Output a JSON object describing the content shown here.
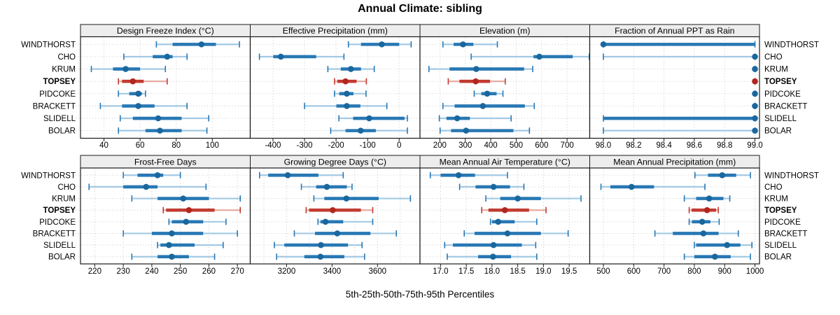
{
  "title": "Annual Climate: sibling",
  "xlabel": "5th-25th-50th-75th-95th Percentiles",
  "sites": [
    "WINDTHORST",
    "CHO",
    "KRUM",
    "TOPSEY",
    "PIDCOKE",
    "BRACKETT",
    "SLIDELL",
    "BOLAR"
  ],
  "highlight_site": "TOPSEY",
  "colors": {
    "blue_range": "#a3c9e4",
    "blue_bar": "#2878b4",
    "blue_dot": "#1a679e",
    "red_range": "#e7a69d",
    "red_bar": "#c23b31",
    "red_dot": "#b2261e",
    "strip_bg": "#ededed",
    "panel_border": "#1a1a1a",
    "grid": "#c9c9c9",
    "text": "#000000"
  },
  "chart_data": {
    "type": "dotplot",
    "subtype": "percentile-interval-plot",
    "percentiles": [
      5,
      25,
      50,
      75,
      95
    ],
    "grid": "dotted",
    "rows_top_to_bottom": [
      "WINDTHORST",
      "CHO",
      "KRUM",
      "TOPSEY",
      "PIDCOKE",
      "BRACKETT",
      "SLIDELL",
      "BOLAR"
    ],
    "panels": [
      {
        "title": "Design Freeze Index (°C)",
        "grid_row": 0,
        "grid_col": 0,
        "xlim": [
          27,
          121
        ],
        "ticks": [
          40,
          60,
          80,
          100
        ],
        "tick_labels": [
          "40",
          "60",
          "80",
          "100"
        ],
        "minor_grid": [],
        "values": {
          "WINDTHORST": [
            69,
            78,
            94,
            102,
            115
          ],
          "CHO": [
            51,
            67,
            75,
            78,
            86
          ],
          "KRUM": [
            33,
            45,
            52,
            60,
            74
          ],
          "TOPSEY": [
            48,
            50,
            56,
            62,
            75
          ],
          "PIDCOKE": [
            48,
            54,
            59,
            61,
            63
          ],
          "BRACKETT": [
            38,
            50,
            59,
            68,
            86
          ],
          "SLIDELL": [
            49,
            56,
            70,
            83,
            98
          ],
          "BOLAR": [
            48,
            63,
            71,
            83,
            97
          ]
        }
      },
      {
        "title": "Effective Precipitation (mm)",
        "grid_row": 0,
        "grid_col": 1,
        "xlim": [
          -472,
          66
        ],
        "ticks": [
          -400,
          -300,
          -200,
          -100,
          0
        ],
        "tick_labels": [
          "-400",
          "-300",
          "-200",
          "-100",
          "0"
        ],
        "minor_grid": [],
        "values": {
          "WINDTHORST": [
            -161,
            -121,
            -55,
            0,
            38
          ],
          "CHO": [
            -443,
            -399,
            -375,
            -263,
            -175
          ],
          "KRUM": [
            -226,
            -185,
            -153,
            -121,
            -79
          ],
          "TOPSEY": [
            -205,
            -196,
            -170,
            -135,
            -104
          ],
          "PIDCOKE": [
            -205,
            -190,
            -166,
            -145,
            -105
          ],
          "BRACKETT": [
            -300,
            -199,
            -166,
            -123,
            -39
          ],
          "SLIDELL": [
            -191,
            -146,
            -95,
            17,
            26
          ],
          "BOLAR": [
            -217,
            -170,
            -122,
            -74,
            26
          ]
        }
      },
      {
        "title": "Elevation (m)",
        "grid_row": 0,
        "grid_col": 2,
        "xlim": [
          122,
          789
        ],
        "ticks": [
          200,
          300,
          400,
          500,
          600,
          700
        ],
        "tick_labels": [
          "200",
          "300",
          "400",
          "500",
          "600",
          "700"
        ],
        "minor_grid": [],
        "values": {
          "WINDTHORST": [
            212,
            254,
            291,
            332,
            426
          ],
          "CHO": [
            323,
            568,
            591,
            722,
            787
          ],
          "KRUM": [
            157,
            238,
            343,
            531,
            565
          ],
          "TOPSEY": [
            233,
            277,
            341,
            397,
            457
          ],
          "PIDCOKE": [
            335,
            363,
            386,
            423,
            448
          ],
          "BRACKETT": [
            212,
            258,
            369,
            534,
            571
          ],
          "SLIDELL": [
            198,
            226,
            268,
            318,
            480
          ],
          "BOLAR": [
            201,
            244,
            303,
            489,
            552
          ]
        }
      },
      {
        "title": "Fraction of Annual PPT as Rain",
        "grid_row": 0,
        "grid_col": 3,
        "xlim": [
          97.91,
          99.03
        ],
        "ticks": [
          98.0,
          98.2,
          98.4,
          98.6,
          98.8,
          99.0
        ],
        "tick_labels": [
          "98.0",
          "98.2",
          "98.4",
          "98.6",
          "98.8",
          "99.0"
        ],
        "minor_grid": [],
        "values": {
          "WINDTHORST": [
            98.0,
            98.0,
            98.0,
            99.0,
            99.0
          ],
          "CHO": [
            98.0,
            99.0,
            99.0,
            99.0,
            99.0
          ],
          "KRUM": [
            99.0,
            99.0,
            99.0,
            99.0,
            99.0
          ],
          "TOPSEY": [
            99.0,
            99.0,
            99.0,
            99.0,
            99.0
          ],
          "PIDCOKE": [
            99.0,
            99.0,
            99.0,
            99.0,
            99.0
          ],
          "BRACKETT": [
            99.0,
            99.0,
            99.0,
            99.0,
            99.0
          ],
          "SLIDELL": [
            98.0,
            98.0,
            99.0,
            99.0,
            99.0
          ],
          "BOLAR": [
            98.0,
            99.0,
            99.0,
            99.0,
            99.0
          ]
        }
      },
      {
        "title": "Frost-Free Days",
        "grid_row": 1,
        "grid_col": 0,
        "xlim": [
          215,
          274.5
        ],
        "ticks": [
          220,
          230,
          240,
          250,
          260,
          270
        ],
        "tick_labels": [
          "220",
          "230",
          "240",
          "250",
          "260",
          "270"
        ],
        "minor_grid": [],
        "values": {
          "WINDTHORST": [
            230,
            235,
            242,
            244,
            250
          ],
          "CHO": [
            218,
            230,
            238,
            242,
            259
          ],
          "KRUM": [
            233,
            242,
            251,
            260,
            271
          ],
          "TOPSEY": [
            244,
            245,
            253,
            262,
            271
          ],
          "PIDCOKE": [
            246,
            247,
            252,
            258,
            266
          ],
          "BRACKETT": [
            230,
            240,
            247,
            258,
            270
          ],
          "SLIDELL": [
            242,
            243,
            246,
            255,
            265
          ],
          "BOLAR": [
            233,
            242,
            247,
            253,
            262
          ]
        }
      },
      {
        "title": "Growing Degree Days (°C)",
        "grid_row": 1,
        "grid_col": 1,
        "xlim": [
          3040,
          3787
        ],
        "ticks": [
          3200,
          3400,
          3600
        ],
        "tick_labels": [
          "3200",
          "3400",
          "3600"
        ],
        "minor_grid": [
          3100,
          3300,
          3500,
          3700
        ],
        "values": {
          "WINDTHORST": [
            3081,
            3119,
            3205,
            3340,
            3449
          ],
          "CHO": [
            3265,
            3330,
            3377,
            3465,
            3488
          ],
          "KRUM": [
            3320,
            3366,
            3463,
            3605,
            3745
          ],
          "TOPSEY": [
            3286,
            3299,
            3403,
            3527,
            3579
          ],
          "PIDCOKE": [
            3338,
            3349,
            3371,
            3449,
            3579
          ],
          "BRACKETT": [
            3234,
            3325,
            3423,
            3569,
            3683
          ],
          "SLIDELL": [
            3146,
            3190,
            3351,
            3470,
            3532
          ],
          "BOLAR": [
            3156,
            3278,
            3349,
            3454,
            3543
          ]
        }
      },
      {
        "title": "Mean Annual Air Temperature (°C)",
        "grid_row": 1,
        "grid_col": 2,
        "xlim": [
          16.6,
          19.9
        ],
        "ticks": [
          17.0,
          17.5,
          18.0,
          18.5,
          19.0,
          19.5
        ],
        "tick_labels": [
          "17.0",
          "17.5",
          "18.0",
          "18.5",
          "19.0",
          "19.5"
        ],
        "minor_grid": [],
        "values": {
          "WINDTHORST": [
            16.8,
            17.0,
            17.35,
            17.67,
            18.3
          ],
          "CHO": [
            17.37,
            17.68,
            18.03,
            18.35,
            18.62
          ],
          "KRUM": [
            17.88,
            18.16,
            18.5,
            18.95,
            19.73
          ],
          "TOPSEY": [
            17.8,
            17.93,
            18.25,
            18.72,
            19.05
          ],
          "PIDCOKE": [
            17.97,
            18.0,
            18.12,
            18.44,
            18.87
          ],
          "BRACKETT": [
            17.46,
            17.66,
            18.3,
            18.95,
            19.48
          ],
          "SLIDELL": [
            17.08,
            17.24,
            18.03,
            18.58,
            18.85
          ],
          "BOLAR": [
            17.13,
            17.73,
            18.02,
            18.37,
            18.87
          ]
        }
      },
      {
        "title": "Mean Annual Precipitation (mm)",
        "grid_row": 1,
        "grid_col": 3,
        "xlim": [
          455,
          1015
        ],
        "ticks": [
          500,
          600,
          700,
          800,
          900,
          1000
        ],
        "tick_labels": [
          "500",
          "600",
          "700",
          "800",
          "900",
          "1000"
        ],
        "minor_grid": [],
        "values": {
          "WINDTHORST": [
            802,
            845,
            892,
            938,
            985
          ],
          "CHO": [
            492,
            523,
            593,
            667,
            835
          ],
          "KRUM": [
            767,
            806,
            849,
            896,
            917
          ],
          "TOPSEY": [
            783,
            791,
            842,
            872,
            879
          ],
          "PIDCOKE": [
            783,
            792,
            826,
            853,
            882
          ],
          "BRACKETT": [
            670,
            729,
            830,
            880,
            945
          ],
          "SLIDELL": [
            800,
            806,
            908,
            952,
            990
          ],
          "BOLAR": [
            767,
            800,
            868,
            920,
            985
          ]
        }
      }
    ]
  }
}
